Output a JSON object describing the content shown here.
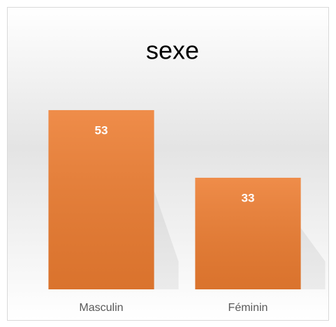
{
  "chart_data": {
    "type": "bar",
    "title": "sexe",
    "categories": [
      "Masculin",
      "Féminin"
    ],
    "values": [
      53,
      33
    ],
    "color": "#ed7d31",
    "ylim": [
      0,
      60
    ]
  }
}
